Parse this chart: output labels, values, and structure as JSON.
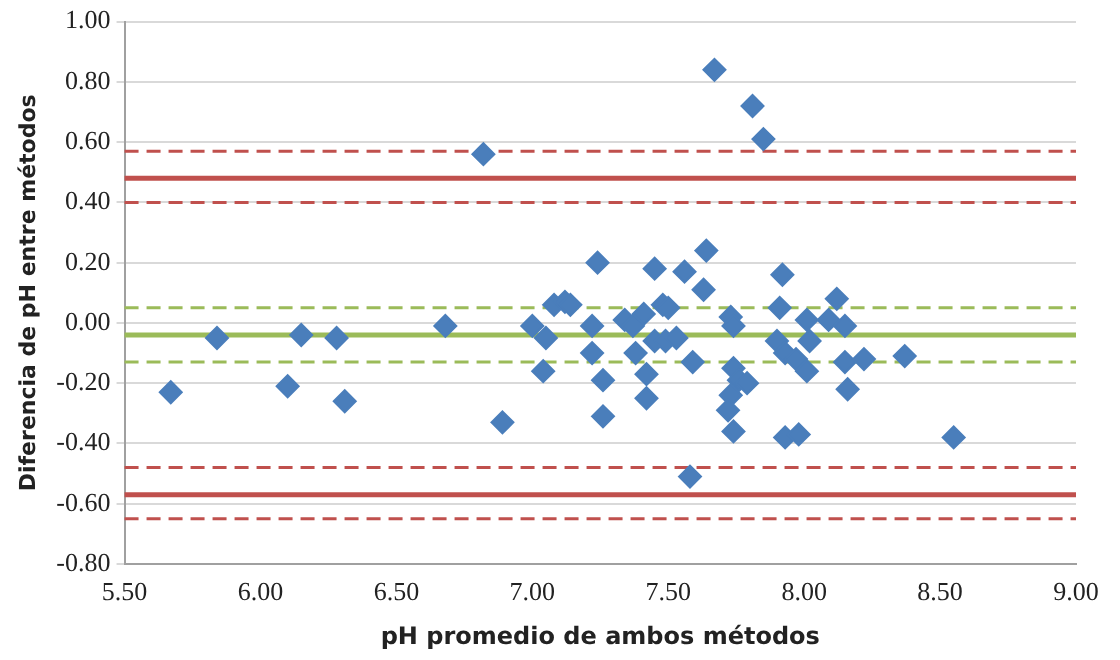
{
  "chart_data": {
    "type": "scatter",
    "xlabel": "pH promedio de ambos métodos",
    "ylabel": "Diferencia de pH entre métodos",
    "xlim": [
      5.5,
      9.0
    ],
    "xticks": [
      {
        "value": 5.5,
        "label": "5.50"
      },
      {
        "value": 6,
        "label": "6.00"
      },
      {
        "value": 6.5,
        "label": "6.50"
      },
      {
        "value": 7,
        "label": "7.00"
      },
      {
        "value": 7.5,
        "label": "7.50"
      },
      {
        "value": 8,
        "label": "8.00"
      },
      {
        "value": 8.5,
        "label": "8.50"
      },
      {
        "value": 9,
        "label": "9.00"
      }
    ],
    "ylim": [
      -0.8,
      1.0
    ],
    "yticks": [
      {
        "value": -0.8,
        "label": "-0.80"
      },
      {
        "value": -0.6,
        "label": "-0.60"
      },
      {
        "value": -0.4,
        "label": "-0.40"
      },
      {
        "value": -0.2,
        "label": "-0.20"
      },
      {
        "value": 0,
        "label": "0.00"
      },
      {
        "value": 0.2,
        "label": "0.20"
      },
      {
        "value": 0.4,
        "label": "0.40"
      },
      {
        "value": 0.6,
        "label": "0.60"
      },
      {
        "value": 0.8,
        "label": "0.80"
      },
      {
        "value": 1.0,
        "label": "1.00"
      }
    ],
    "grid": "y",
    "legend": false,
    "marker": "diamond",
    "series": [
      {
        "color": "#4a7ebb",
        "x": [
          5.67,
          5.84,
          6.1,
          6.15,
          6.28,
          6.31,
          6.68,
          6.82,
          6.89,
          7.0,
          7.05,
          7.04,
          7.08,
          7.12,
          7.14,
          7.24,
          7.22,
          7.22,
          7.26,
          7.26,
          7.34,
          7.37,
          7.38,
          7.41,
          7.42,
          7.42,
          7.45,
          7.45,
          7.48,
          7.5,
          7.49,
          7.53,
          7.56,
          7.58,
          7.59,
          7.63,
          7.64,
          7.67,
          7.81,
          7.85,
          7.73,
          7.74,
          7.74,
          7.76,
          7.73,
          7.72,
          7.74,
          7.79,
          7.92,
          7.91,
          7.9,
          7.93,
          7.97,
          8.01,
          7.93,
          7.98,
          8.01,
          8.02,
          8.09,
          8.12,
          8.15,
          8.15,
          8.16,
          8.22,
          8.37,
          8.55
        ],
        "values": [
          -0.23,
          -0.05,
          -0.21,
          -0.04,
          -0.05,
          -0.26,
          -0.01,
          0.56,
          -0.33,
          -0.01,
          -0.05,
          -0.16,
          0.06,
          0.07,
          0.06,
          0.2,
          -0.01,
          -0.1,
          -0.19,
          -0.31,
          0.01,
          -0.01,
          -0.1,
          0.03,
          -0.17,
          -0.25,
          0.18,
          -0.06,
          0.06,
          0.05,
          -0.06,
          -0.05,
          0.17,
          -0.51,
          -0.13,
          0.11,
          0.24,
          0.84,
          0.72,
          0.61,
          0.02,
          -0.01,
          -0.15,
          -0.19,
          -0.24,
          -0.29,
          -0.36,
          -0.2,
          0.16,
          0.05,
          -0.06,
          -0.1,
          -0.12,
          -0.16,
          -0.38,
          -0.37,
          0.01,
          -0.06,
          0.01,
          0.08,
          -0.01,
          -0.13,
          -0.22,
          -0.12,
          -0.11,
          -0.38
        ]
      }
    ],
    "ref_lines": [
      {
        "axis": "y",
        "value": 0.57,
        "color": "#c0504d",
        "line_style": "dashed"
      },
      {
        "axis": "y",
        "value": 0.48,
        "color": "#c0504d",
        "line_style": "solid"
      },
      {
        "axis": "y",
        "value": 0.4,
        "color": "#c0504d",
        "line_style": "dashed"
      },
      {
        "axis": "y",
        "value": 0.05,
        "color": "#9bbb59",
        "line_style": "dashed"
      },
      {
        "axis": "y",
        "value": -0.04,
        "color": "#9bbb59",
        "line_style": "solid"
      },
      {
        "axis": "y",
        "value": -0.13,
        "color": "#9bbb59",
        "line_style": "dashed"
      },
      {
        "axis": "y",
        "value": -0.48,
        "color": "#c0504d",
        "line_style": "dashed"
      },
      {
        "axis": "y",
        "value": -0.57,
        "color": "#c0504d",
        "line_style": "solid"
      },
      {
        "axis": "y",
        "value": -0.65,
        "color": "#c0504d",
        "line_style": "dashed"
      }
    ]
  }
}
